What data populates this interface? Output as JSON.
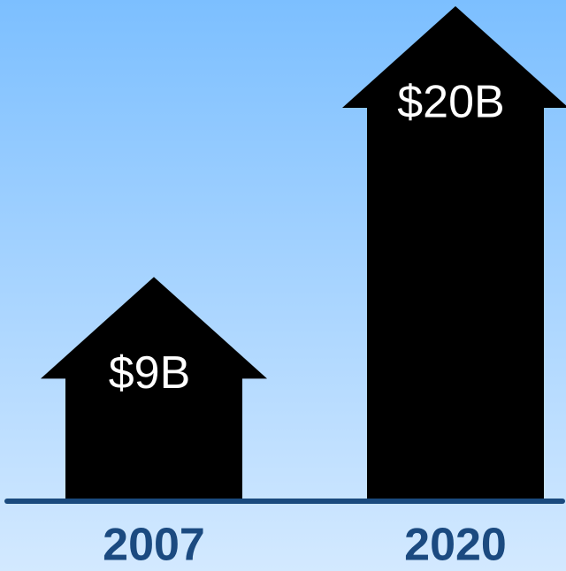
{
  "chart_data": {
    "type": "arrow-bar",
    "categories": [
      "2007",
      "2020"
    ],
    "values": [
      9,
      20
    ],
    "value_labels": [
      "$9B",
      "$20B"
    ],
    "color": "#000000"
  }
}
